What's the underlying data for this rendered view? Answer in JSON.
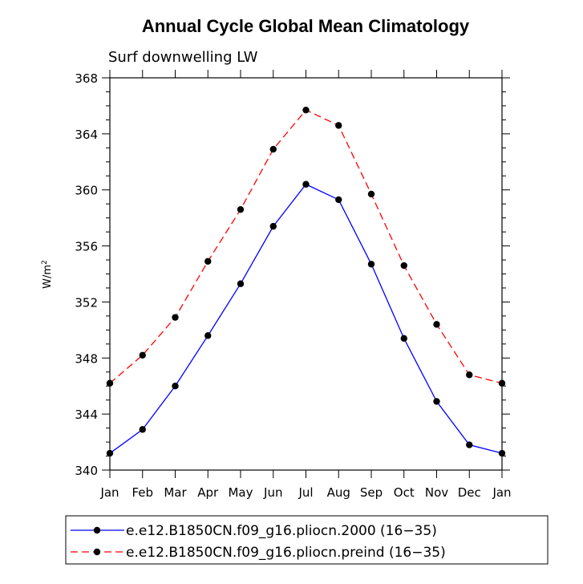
{
  "chart_data": {
    "type": "line",
    "title": "Annual Cycle Global Mean Climatology",
    "subtitle": "Surf downwelling LW",
    "ylabel": "W/m",
    "ylabel_sup": "2",
    "xlabel": "",
    "categories": [
      "Jan",
      "Feb",
      "Mar",
      "Apr",
      "May",
      "Jun",
      "Jul",
      "Aug",
      "Sep",
      "Oct",
      "Nov",
      "Dec",
      "Jan"
    ],
    "ylim": [
      340,
      368
    ],
    "yticks": [
      340,
      344,
      348,
      352,
      356,
      360,
      364,
      368
    ],
    "grid": false,
    "legend_placement": "bottom",
    "series": [
      {
        "name": "e.e12.B1850CN.f09_g16.pliocn.2000 (16−35)",
        "color": "#0000ff",
        "dash": "solid",
        "values": [
          341.2,
          342.9,
          346.0,
          349.6,
          353.3,
          357.4,
          360.4,
          359.3,
          354.7,
          349.4,
          344.9,
          341.8,
          341.2
        ]
      },
      {
        "name": "e.e12.B1850CN.f09_g16.pliocn.preind (16−35)",
        "color": "#ff0000",
        "dash": "dashed",
        "values": [
          346.2,
          348.2,
          350.9,
          354.9,
          358.6,
          362.9,
          365.7,
          364.6,
          359.7,
          354.6,
          350.4,
          346.8,
          346.2
        ]
      }
    ]
  }
}
